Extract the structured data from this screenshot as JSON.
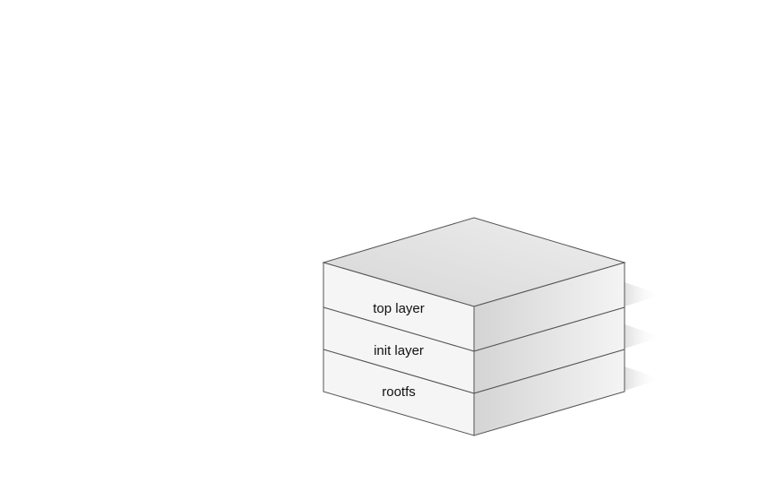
{
  "diagram": {
    "layers": [
      {
        "label": "top layer"
      },
      {
        "label": "init layer"
      },
      {
        "label": "rootfs"
      }
    ],
    "colors": {
      "stroke": "#555555",
      "front_face": "#f5f5f5",
      "top_face_light": "#ececec",
      "top_face_dark": "#d8d8d8",
      "side_face_dark": "#d6d6d6",
      "side_face_light": "#f2f2f2"
    }
  }
}
